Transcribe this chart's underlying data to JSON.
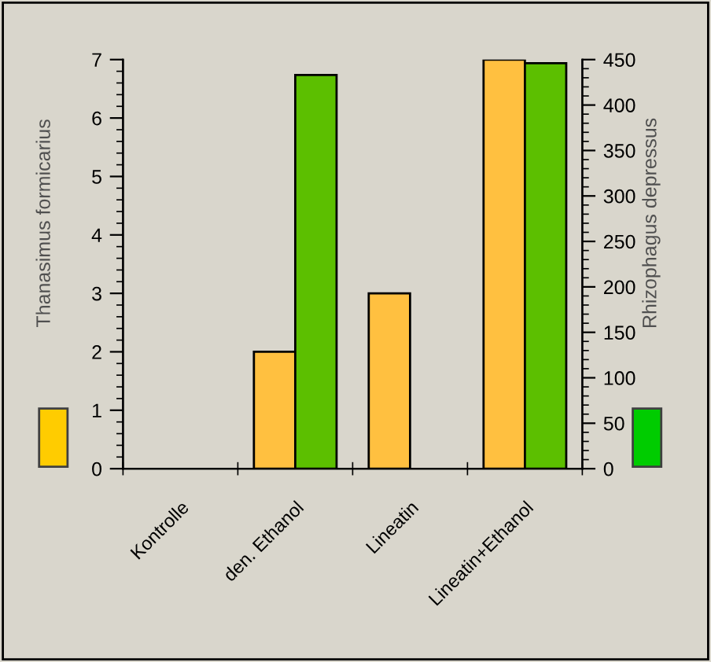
{
  "chart_data": {
    "type": "bar",
    "categories": [
      "Kontrolle",
      "den. Ethanol",
      "Lineatin",
      "Lineatin+Ethanol"
    ],
    "ylabel": "Thanasimus formicarius",
    "y2label": "Rhizophagus depressus",
    "series": [
      {
        "color": "#ffc040",
        "values": [
          0,
          2,
          3,
          7
        ]
      },
      {
        "color": "#5cbf00",
        "values": [
          0,
          433,
          0,
          446
        ],
        "axis": "y2"
      }
    ],
    "ylim": [
      0,
      7
    ],
    "yticks": [
      0,
      1,
      2,
      3,
      4,
      5,
      6,
      7
    ],
    "y2lim": [
      0,
      450
    ],
    "y2ticks": [
      0,
      50,
      100,
      150,
      200,
      250,
      300,
      350,
      400,
      450
    ],
    "grid": false
  }
}
